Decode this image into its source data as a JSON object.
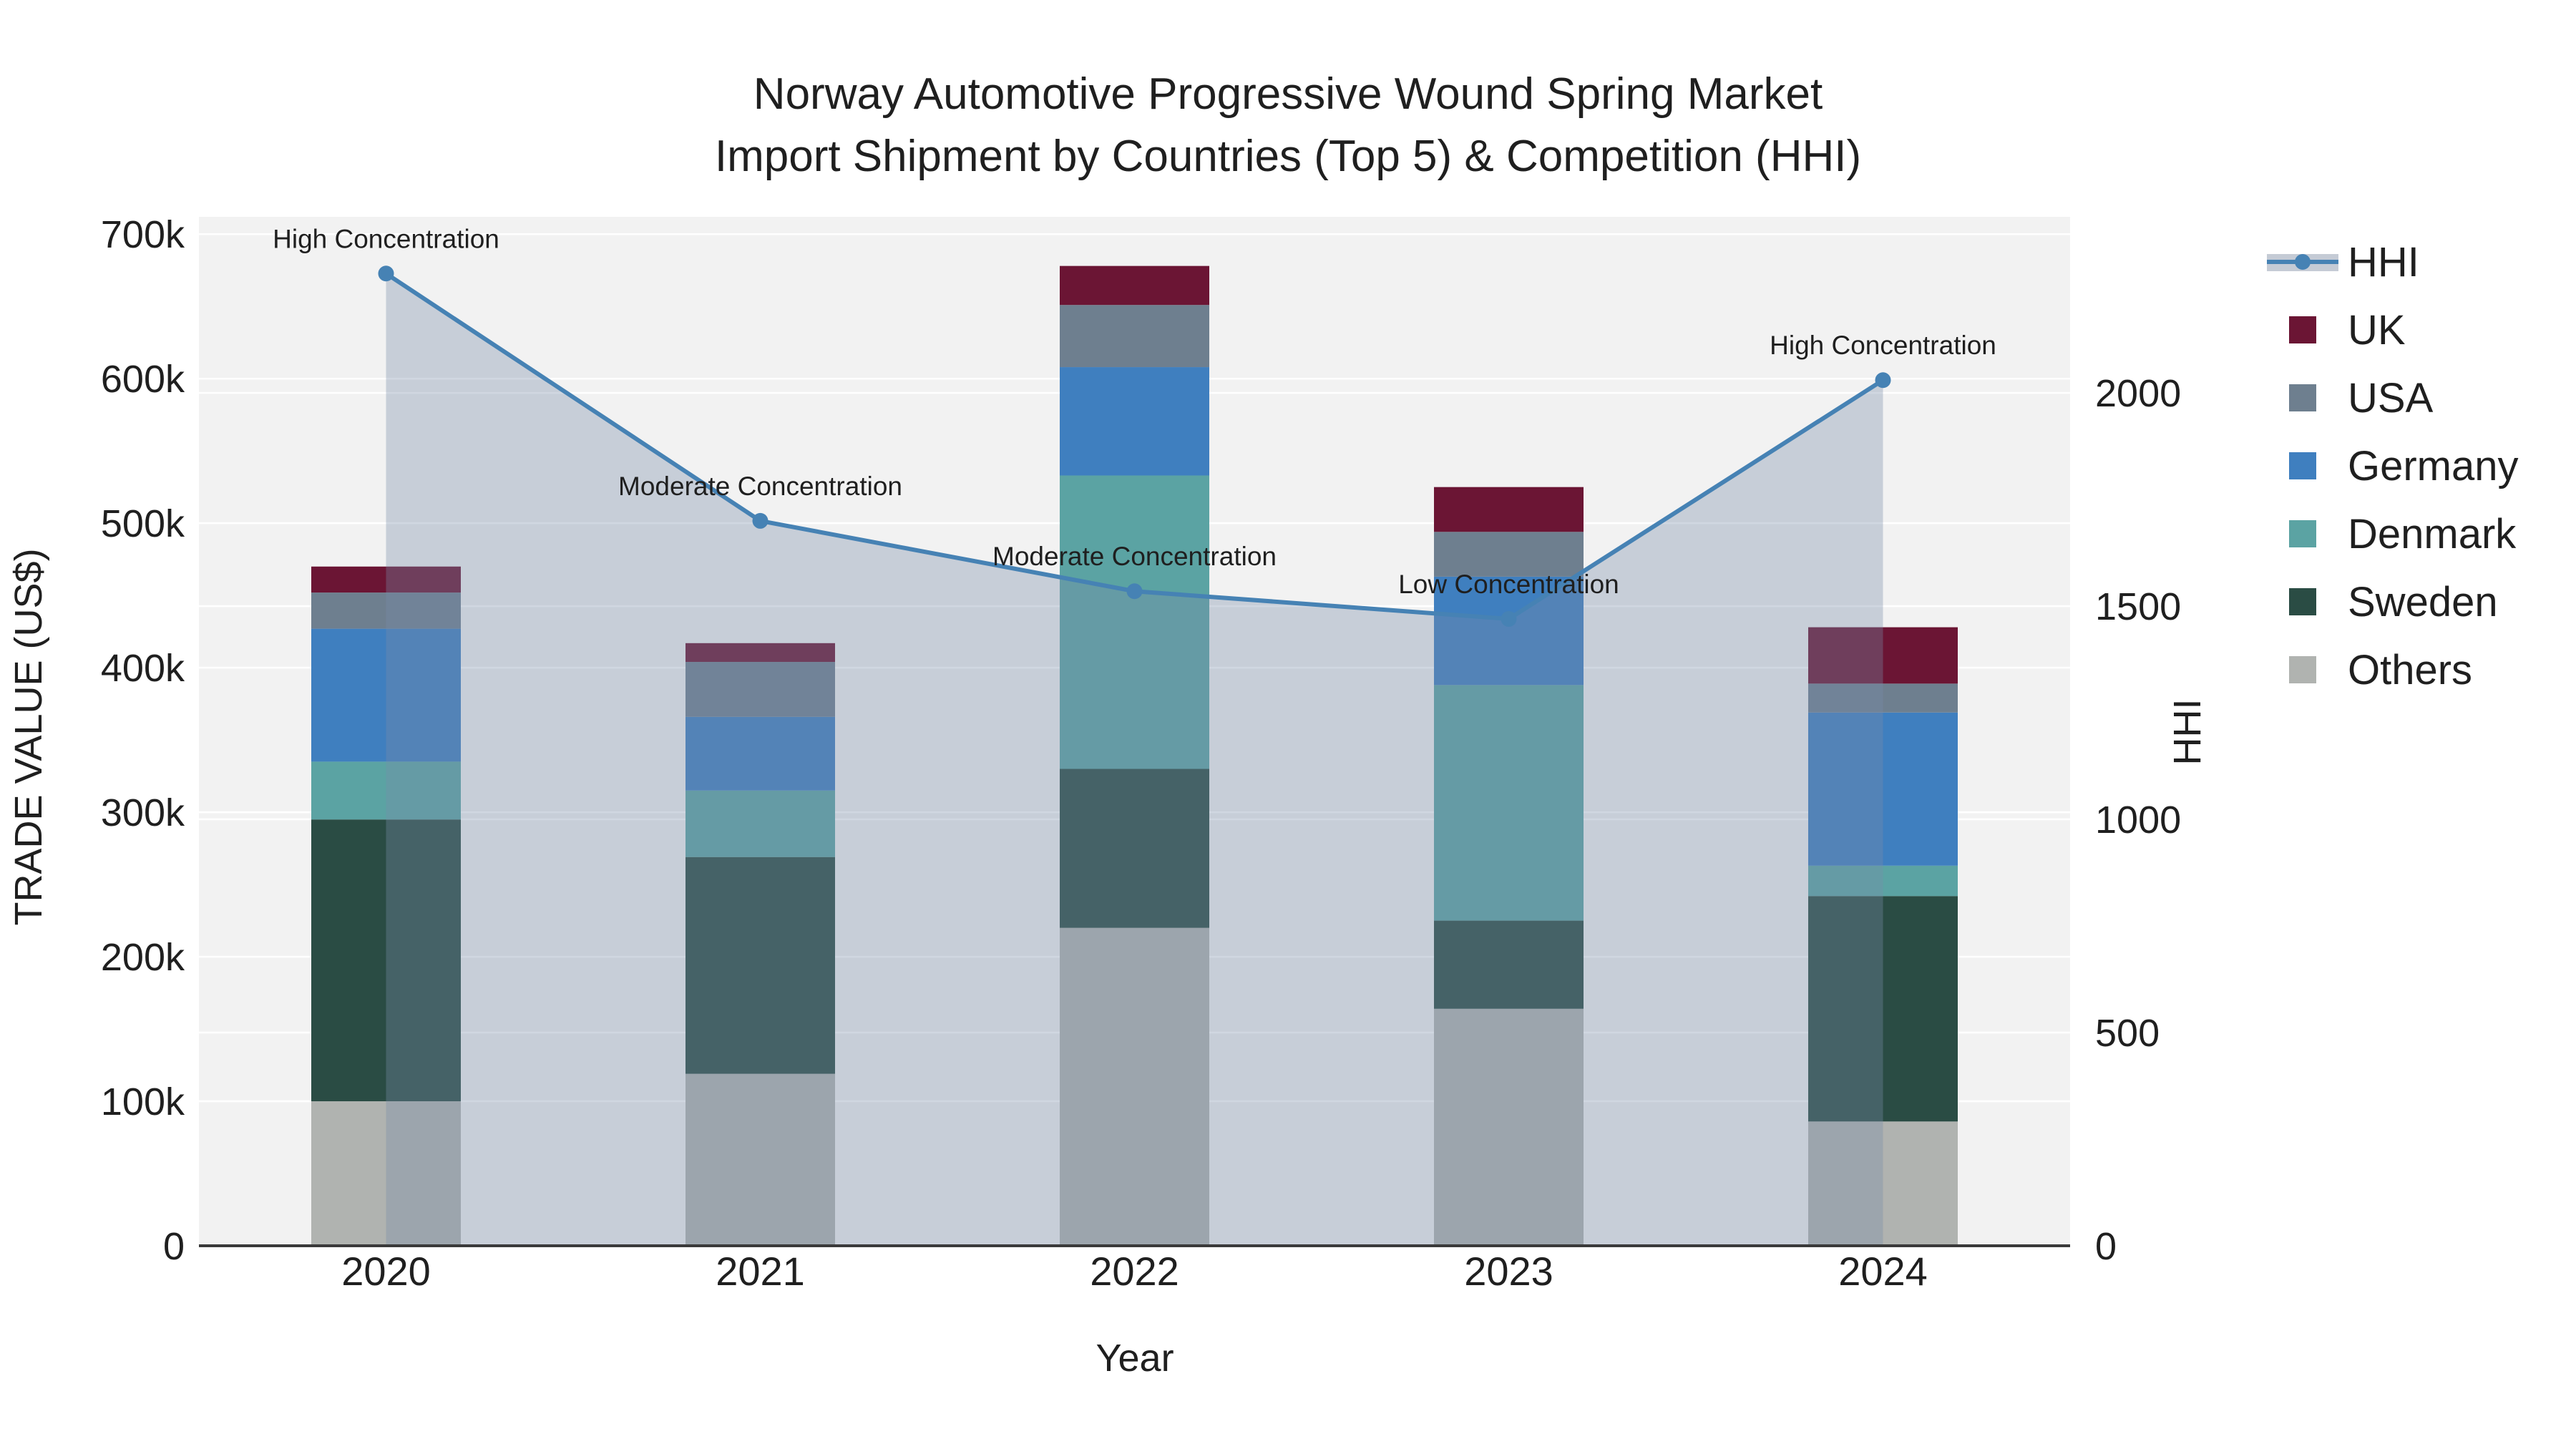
{
  "chart_data": {
    "type": "bar+line-combo",
    "title": "Norway Automotive Progressive Wound Spring Market",
    "subtitle": "Import Shipment by Countries (Top 5) & Competition (HHI)",
    "xlabel": "Year",
    "ylabel_left": "TRADE VALUE (US$)",
    "ylabel_right": "HHI",
    "categories": [
      "2020",
      "2021",
      "2022",
      "2023",
      "2024"
    ],
    "unit": "thousand US$",
    "stacked_series": [
      {
        "name": "Others",
        "color": "#b0b3b0",
        "values": [
          100,
          119,
          220,
          164,
          86
        ]
      },
      {
        "name": "Sweden",
        "color": "#2a4c44",
        "values": [
          195,
          150,
          110,
          61,
          156
        ]
      },
      {
        "name": "Denmark",
        "color": "#5ba3a3",
        "values": [
          40,
          46,
          203,
          163,
          21
        ]
      },
      {
        "name": "Germany",
        "color": "#3f7fbf",
        "values": [
          92,
          51,
          75,
          75,
          106
        ]
      },
      {
        "name": "USA",
        "color": "#6e7f8f",
        "values": [
          25,
          38,
          43,
          31,
          20
        ]
      },
      {
        "name": "UK",
        "color": "#6b1534",
        "values": [
          18,
          13,
          27,
          31,
          39
        ]
      }
    ],
    "totals": [
      470,
      417,
      678,
      525,
      428
    ],
    "hhi_line": {
      "name": "HHI",
      "color": "#4682b4",
      "values": [
        2280,
        1700,
        1535,
        1470,
        2030
      ],
      "area_fill": "rgba(120,140,170,0.35)"
    },
    "annotations": [
      "High Concentration",
      "Moderate Concentration",
      "Moderate Concentration",
      "Low Concentration",
      "High Concentration"
    ],
    "axes": {
      "left_ticks": [
        {
          "v": 0,
          "label": "0"
        },
        {
          "v": 100,
          "label": "100k"
        },
        {
          "v": 200,
          "label": "200k"
        },
        {
          "v": 300,
          "label": "300k"
        },
        {
          "v": 400,
          "label": "400k"
        },
        {
          "v": 500,
          "label": "500k"
        },
        {
          "v": 600,
          "label": "600k"
        },
        {
          "v": 700,
          "label": "700k"
        }
      ],
      "left_max": 712,
      "right_ticks": [
        {
          "v": 0,
          "label": "0"
        },
        {
          "v": 500,
          "label": "500"
        },
        {
          "v": 1000,
          "label": "1000"
        },
        {
          "v": 1500,
          "label": "1500"
        },
        {
          "v": 2000,
          "label": "2000"
        }
      ],
      "right_max": 2413,
      "grid": true
    },
    "legend": [
      {
        "label": "HHI",
        "type": "line"
      },
      {
        "label": "UK",
        "type": "swatch"
      },
      {
        "label": "USA",
        "type": "swatch"
      },
      {
        "label": "Germany",
        "type": "swatch"
      },
      {
        "label": "Denmark",
        "type": "swatch"
      },
      {
        "label": "Sweden",
        "type": "swatch"
      },
      {
        "label": "Others",
        "type": "swatch"
      }
    ],
    "colors": {
      "plot_bg": "#f2f2f2",
      "grid": "#ffffff",
      "axis_line": "#3a3a3a",
      "text": "#1f1f1f",
      "legend_band": "#c5cbd5"
    }
  }
}
